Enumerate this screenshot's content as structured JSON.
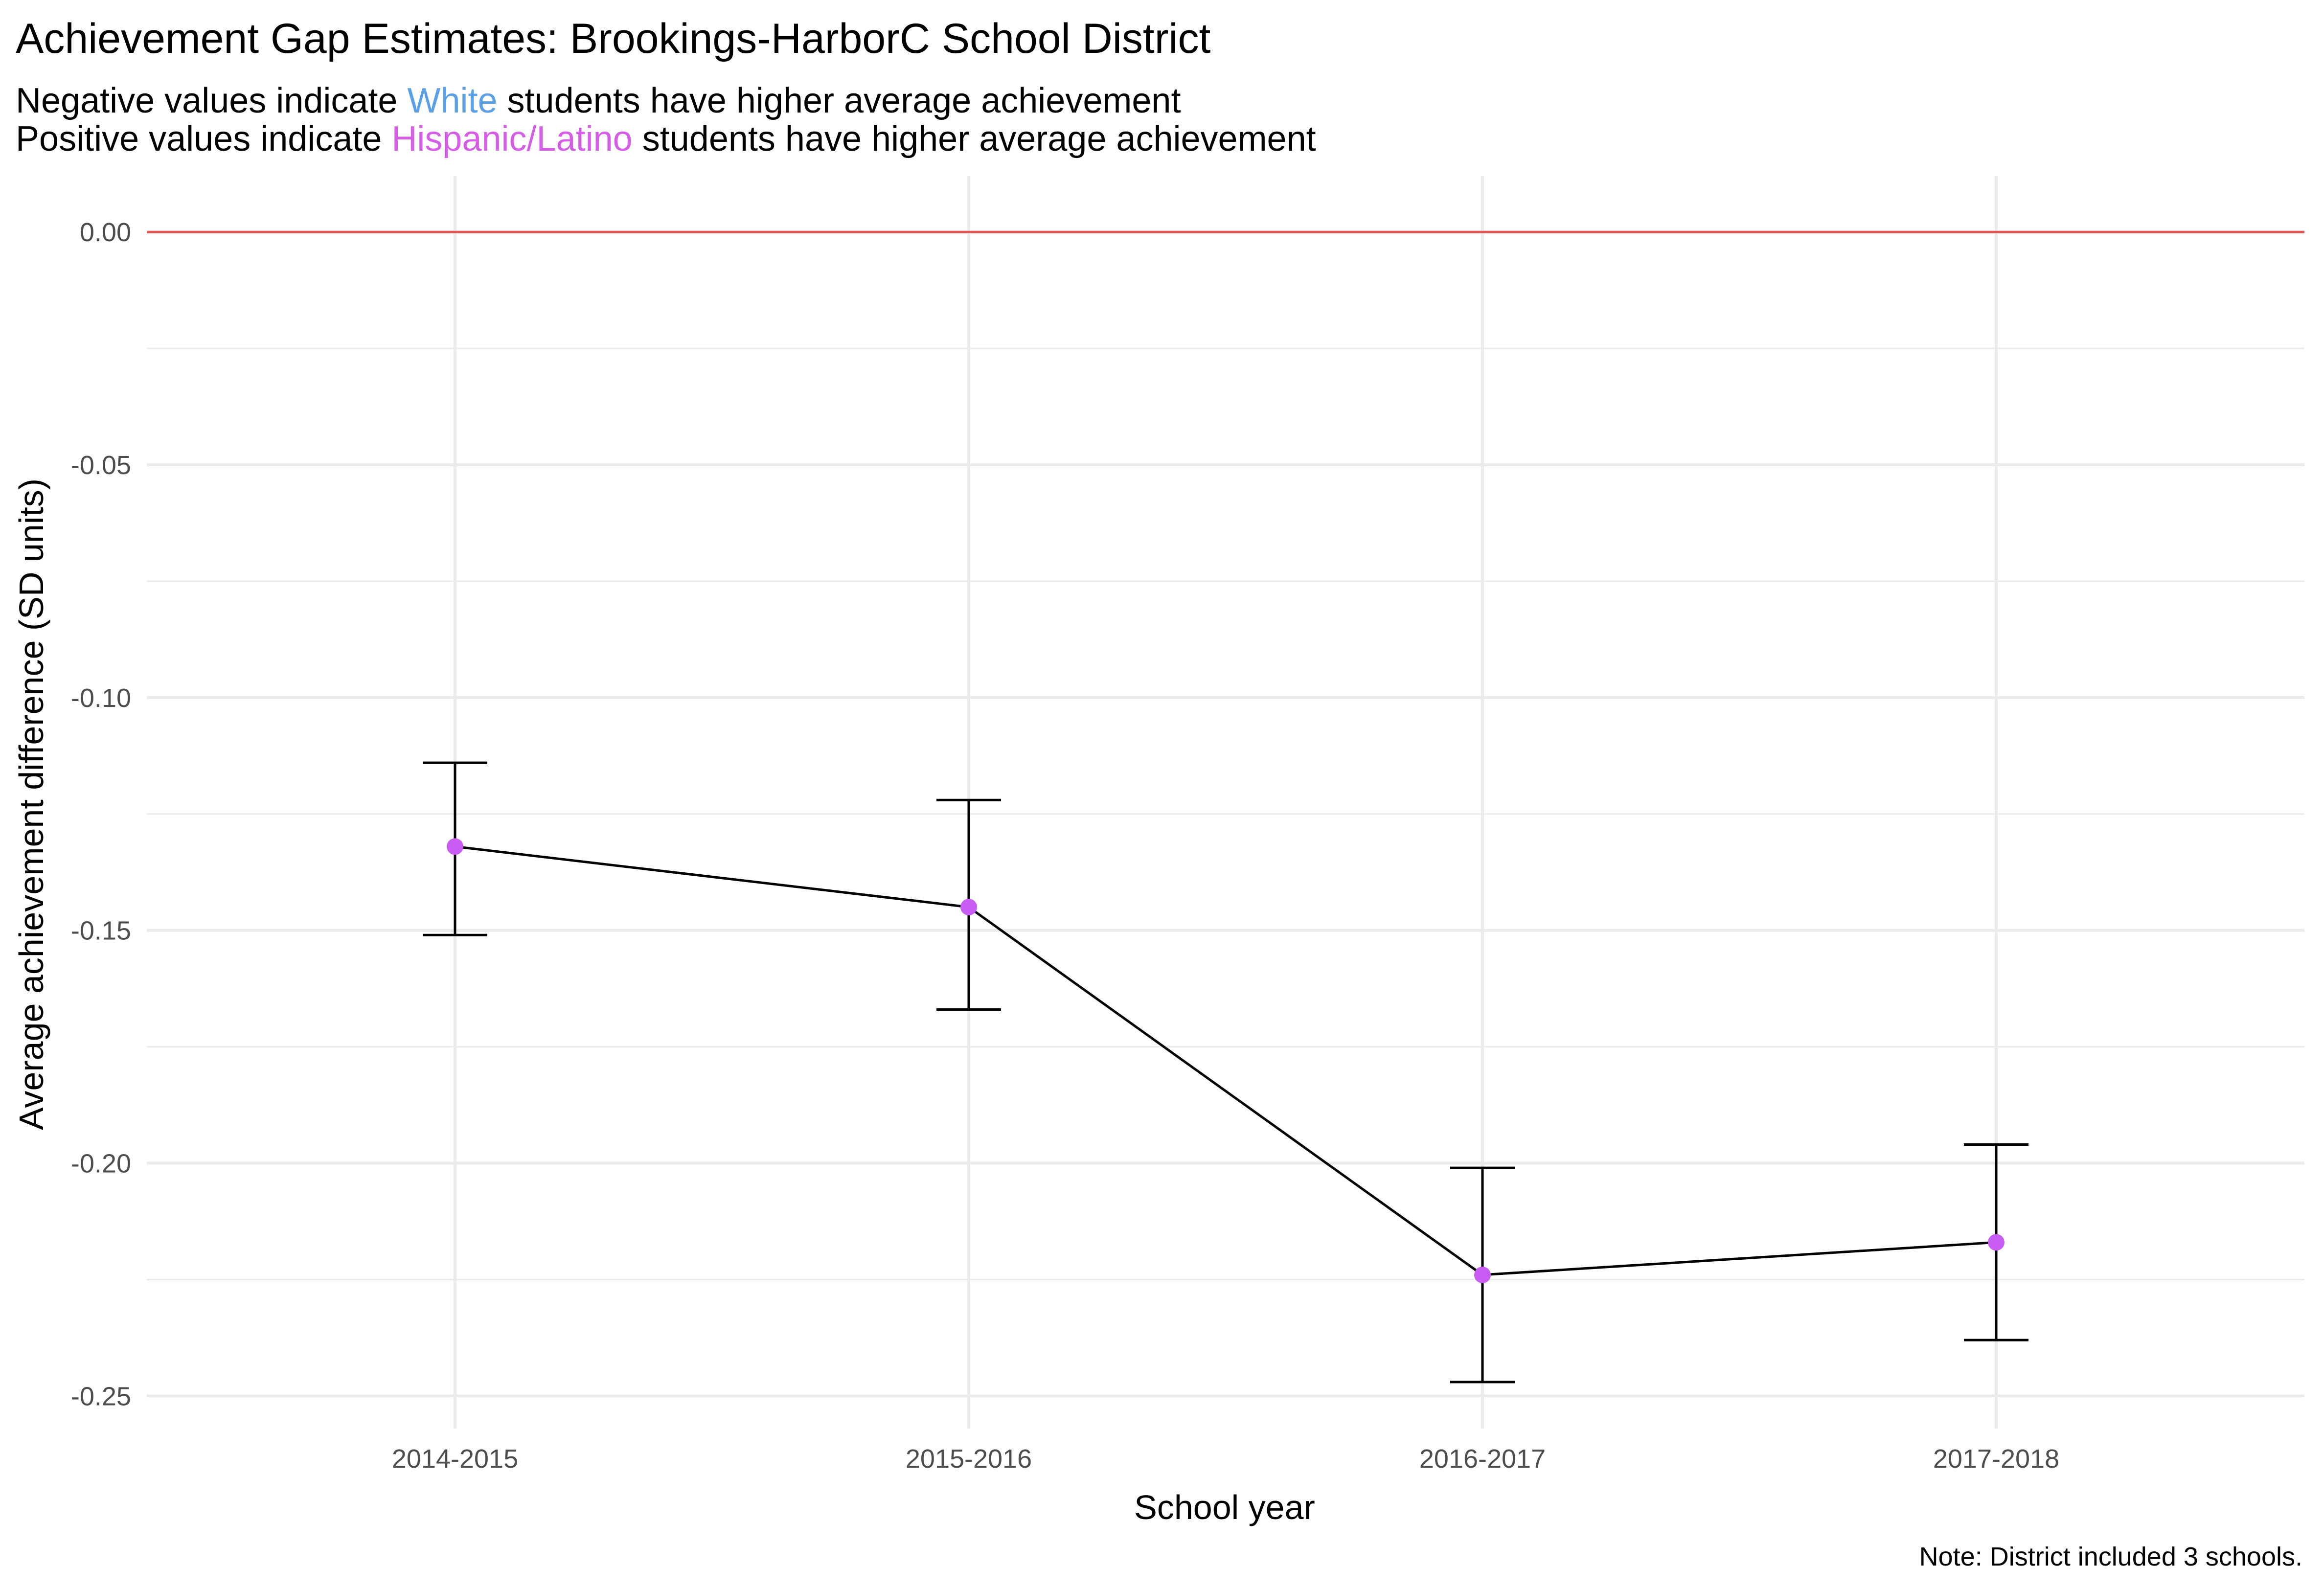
{
  "title": "Achievement Gap Estimates: Brookings-HarborC School District",
  "subtitle": {
    "line1": {
      "before": "Negative values indicate",
      "highlight": "White",
      "after": "students have higher average achievement",
      "highlight_color": "#5b9fe6"
    },
    "line2": {
      "before": "Positive values indicate",
      "highlight": "Hispanic/Latino",
      "after": "students have higher average achievement",
      "highlight_color": "#d65ee6"
    }
  },
  "caption": "Note: District included 3 schools.",
  "colors": {
    "point": "#c95cf2",
    "line": "#000000",
    "reference_line": "#e05a5a",
    "grid": "#ebebeb"
  },
  "chart_data": {
    "type": "line",
    "xlabel": "School year",
    "ylabel": "Average achievement difference (SD units)",
    "categories": [
      "2014-2015",
      "2015-2016",
      "2016-2017",
      "2017-2018"
    ],
    "series": [
      {
        "values": [
          -0.132,
          -0.145,
          -0.224,
          -0.217
        ],
        "lower": [
          -0.151,
          -0.167,
          -0.247,
          -0.238
        ],
        "upper": [
          -0.114,
          -0.122,
          -0.201,
          -0.196
        ]
      }
    ],
    "reference_line": 0,
    "ylim": [
      -0.257,
      0.012
    ],
    "yticks": [
      0.0,
      -0.05,
      -0.1,
      -0.15,
      -0.2,
      -0.25
    ],
    "ytick_labels": [
      "0.00",
      "-0.05",
      "-0.10",
      "-0.15",
      "-0.20",
      "-0.25"
    ],
    "grid": true,
    "legend": "none"
  }
}
